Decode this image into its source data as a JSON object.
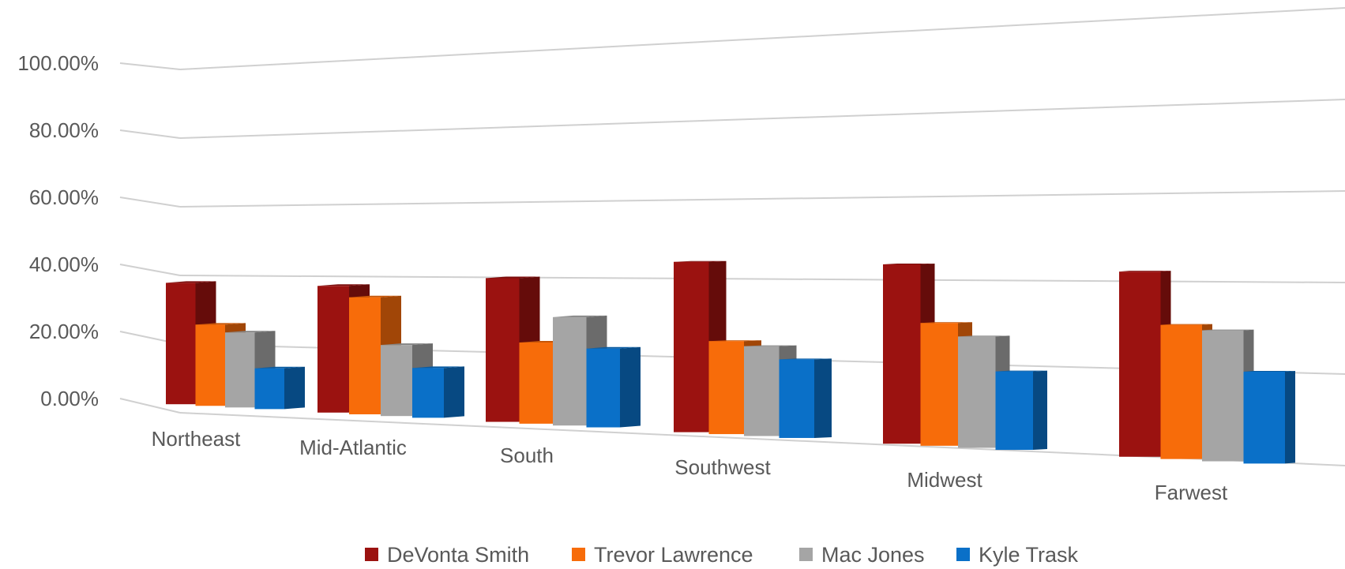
{
  "chart_data": {
    "type": "bar",
    "title": "",
    "xlabel": "",
    "ylabel": "",
    "ylim": [
      0,
      1
    ],
    "yticks": [
      "0.00%",
      "20.00%",
      "40.00%",
      "60.00%",
      "80.00%",
      "100.00%"
    ],
    "grid": true,
    "legend_position": "bottom",
    "categories": [
      "Northeast",
      "Mid-Atlantic",
      "South",
      "Southwest",
      "Midwest",
      "Farwest"
    ],
    "series": [
      {
        "name": "DeVonta Smith",
        "color": "#9b1210",
        "values": [
          0.35,
          0.35,
          0.38,
          0.43,
          0.43,
          0.42
        ]
      },
      {
        "name": "Trevor Lawrence",
        "color": "#f76c0a",
        "values": [
          0.23,
          0.32,
          0.21,
          0.23,
          0.29,
          0.3
        ]
      },
      {
        "name": "Mac Jones",
        "color": "#a5a5a5",
        "values": [
          0.21,
          0.19,
          0.28,
          0.22,
          0.26,
          0.29
        ]
      },
      {
        "name": "Kyle Trask",
        "color": "#0a70c8",
        "values": [
          0.11,
          0.13,
          0.2,
          0.19,
          0.18,
          0.2
        ]
      }
    ]
  }
}
